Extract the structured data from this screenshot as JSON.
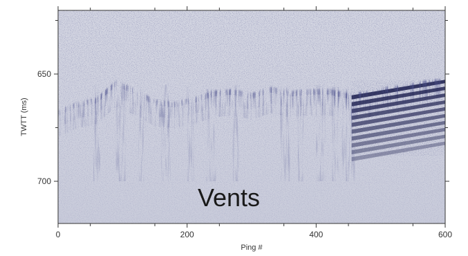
{
  "figure": {
    "type": "seismic-profile-image",
    "overlay_label": "Vents",
    "colors": {
      "background_noise": "#d4d6e2",
      "reflector_dark": "#171a4a",
      "frame": "#333333"
    }
  },
  "chart_data": {
    "type": "heatmap",
    "title": "",
    "xlabel": "Ping #",
    "ylabel": "TWTT (ms)",
    "xlim": [
      0,
      600
    ],
    "ylim": [
      720,
      620
    ],
    "x_ticks": [
      0,
      200,
      400,
      600
    ],
    "y_ticks": [
      650,
      700
    ],
    "grid": false,
    "annotations": [
      "Vents"
    ],
    "seafloor_reflector": {
      "ping": [
        0,
        30,
        60,
        90,
        120,
        150,
        180,
        210,
        240,
        270,
        300,
        330,
        360,
        390,
        420,
        450,
        480,
        510,
        540,
        570,
        600
      ],
      "twtt_ms": [
        667,
        663,
        661,
        653,
        657,
        662,
        663,
        661,
        658,
        657,
        659,
        656,
        658,
        657,
        657,
        659,
        658,
        656,
        655,
        653,
        652
      ]
    }
  }
}
